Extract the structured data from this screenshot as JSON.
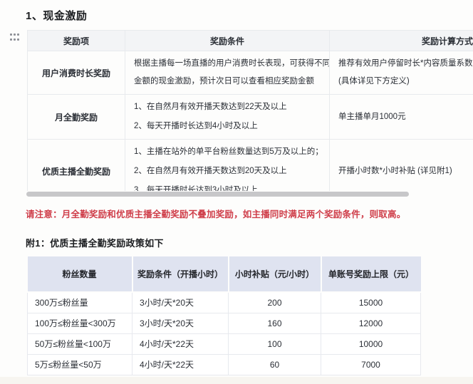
{
  "doc": {
    "section_title": "1、现金激励",
    "notice": "请注意：月全勤奖励和优质主播全勤奖励不叠加奖励，如主播同时满足两个奖励条件，则取高。",
    "appendix_title": "附1：优质主播全勤奖励政策如下"
  },
  "colors": {
    "notice_red": "#cf3d49",
    "appendix_header_bg": "#dfe3f0",
    "table_header_bg": "#f3f4f6",
    "scrollbar_gray": "#c7c7c9"
  },
  "reward_table": {
    "headers": [
      "奖励项",
      "奖励条件",
      "奖励计算方式"
    ],
    "rows": [
      {
        "item": "用户消费时长奖励",
        "conditions": [
          "根据主播每一场直播的用户消费时长表现，可获得不同",
          "金额的现金激励，预计次日可以查看相应奖励金额"
        ],
        "calculation": [
          "推荐有效用户停留时长*内容质量系数",
          "(具体详见下方定义)"
        ]
      },
      {
        "item": "月全勤奖励",
        "conditions": [
          "1、在自然月有效开播天数达到22天及以上",
          "2、每天开播时长达到4小时及以上"
        ],
        "calculation": [
          "单主播单月1000元"
        ]
      },
      {
        "item": "优质主播全勤奖励",
        "conditions": [
          "1、主播在站外的单平台粉丝数量达到5万及以上的；",
          "2、在自然月有效开播天数达到20天及以上",
          "3、每天开播时长达到3小时及以上"
        ],
        "calculation": [
          "开播小时数*小时补贴 (详见附1)"
        ]
      }
    ]
  },
  "appendix_table": {
    "headers": [
      "粉丝数量",
      "奖励条件（开播小时）",
      "小时补贴（元/小时）",
      "单账号奖励上限（元）"
    ],
    "rows": [
      [
        "300万≤粉丝量",
        "3小时/天*20天",
        "200",
        "15000"
      ],
      [
        "100万≤粉丝量<300万",
        "3小时/天*20天",
        "160",
        "12000"
      ],
      [
        "50万≤粉丝量<100万",
        "4小时/天*22天",
        "100",
        "10000"
      ],
      [
        "5万≤粉丝量<50万",
        "4小时/天*22天",
        "60",
        "7000"
      ]
    ]
  }
}
